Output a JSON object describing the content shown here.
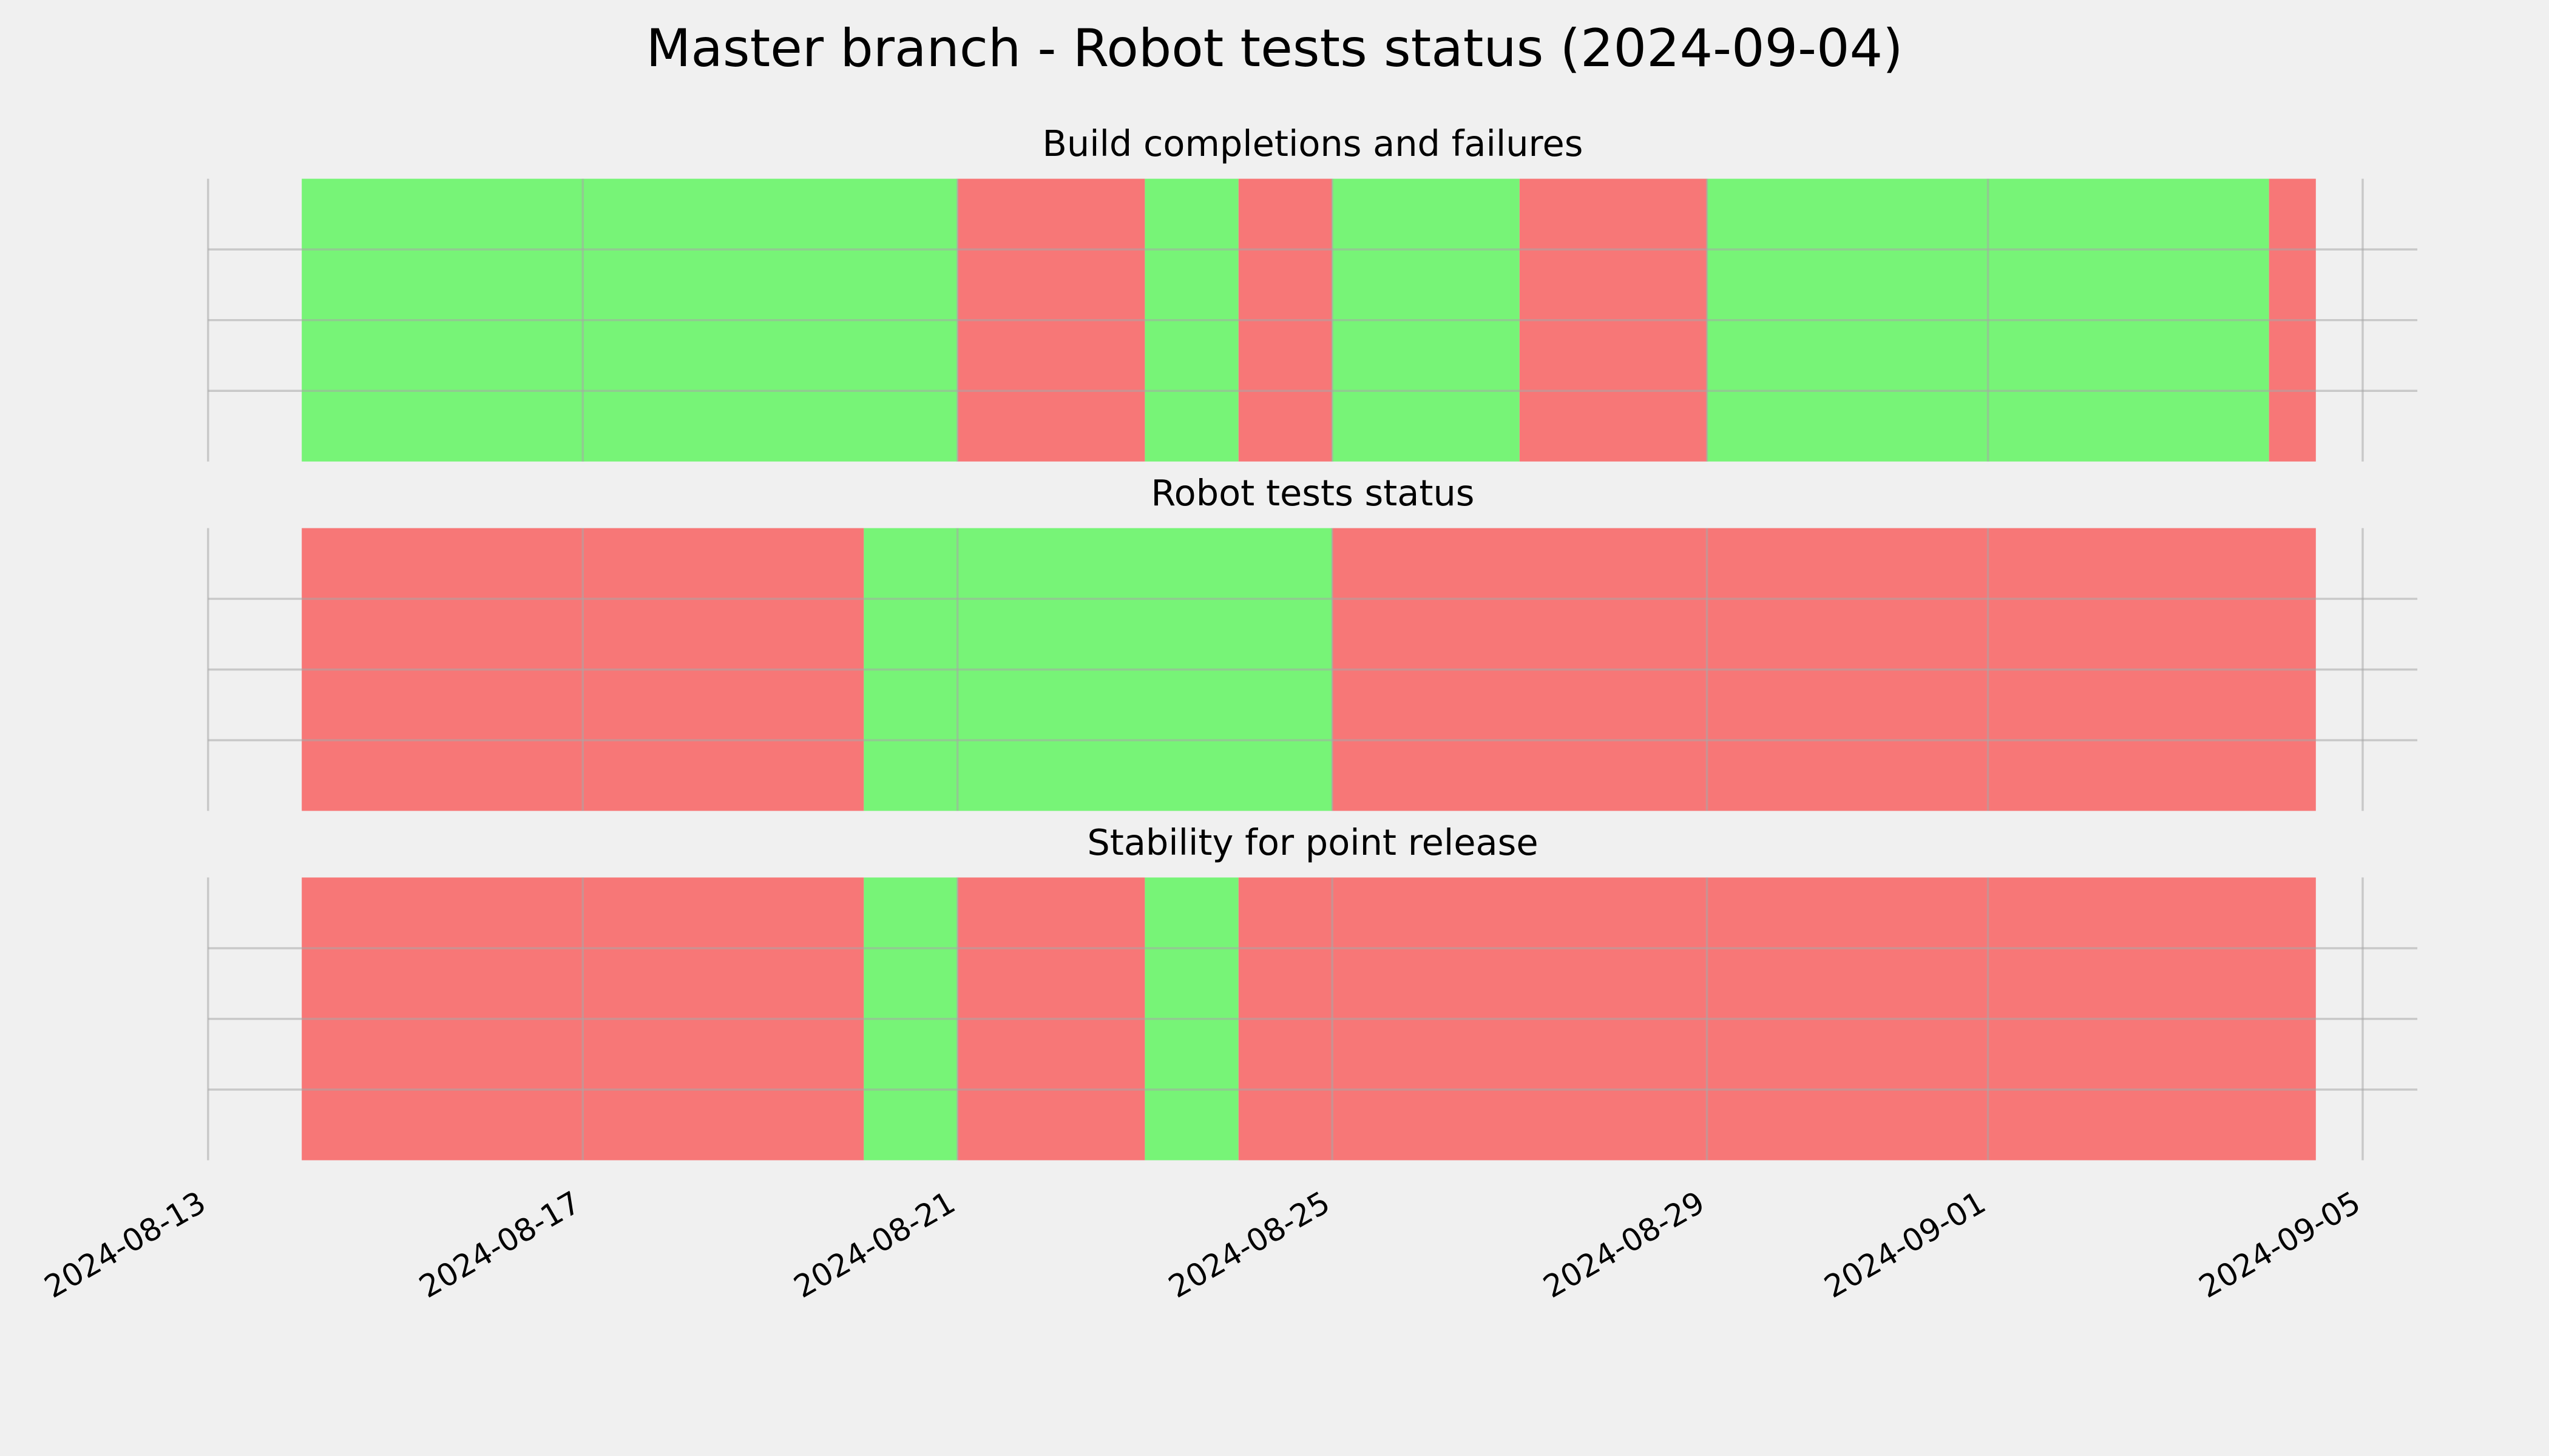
{
  "title": "Master branch - Robot tests status (2024-09-04)",
  "chart_data": [
    {
      "type": "timeline",
      "title": "Build completions and failures",
      "x": [
        "2024-08-14",
        "2024-08-21",
        "2024-08-23",
        "2024-08-24",
        "2024-08-25",
        "2024-08-27",
        "2024-08-29",
        "2024-09-04",
        "2024-09-04T12:00"
      ],
      "colors": [
        "#77f477",
        "#f77777",
        "#77f477",
        "#f77777",
        "#77f477",
        "#f77777",
        "#77f477",
        "#f77777"
      ],
      "xlim": [
        "2024-08-13",
        "2024-09-05T14:00"
      ],
      "xticks": [
        "2024-08-13",
        "2024-08-17",
        "2024-08-21",
        "2024-08-25",
        "2024-08-29",
        "2024-09-01",
        "2024-09-05"
      ],
      "ylim": [
        0,
        1
      ],
      "yticks": [
        0.25,
        0.5,
        0.75
      ],
      "grid": true
    },
    {
      "type": "timeline",
      "title": "Robot tests status",
      "x": [
        "2024-08-14",
        "2024-08-20",
        "2024-08-25",
        "2024-09-04T12:00"
      ],
      "colors": [
        "#f77777",
        "#77f477",
        "#f77777"
      ],
      "xlim": [
        "2024-08-13",
        "2024-09-05T14:00"
      ],
      "xticks": [
        "2024-08-13",
        "2024-08-17",
        "2024-08-21",
        "2024-08-25",
        "2024-08-29",
        "2024-09-01",
        "2024-09-05"
      ],
      "ylim": [
        0,
        1
      ],
      "yticks": [
        0.25,
        0.5,
        0.75
      ],
      "grid": true
    },
    {
      "type": "timeline",
      "title": "Stability for point release",
      "x": [
        "2024-08-14",
        "2024-08-20",
        "2024-08-21",
        "2024-08-23",
        "2024-08-24",
        "2024-09-04T12:00"
      ],
      "colors": [
        "#f77777",
        "#77f477",
        "#f77777",
        "#77f477",
        "#f77777"
      ],
      "xlim": [
        "2024-08-13",
        "2024-09-05T14:00"
      ],
      "xticks": [
        "2024-08-13",
        "2024-08-17",
        "2024-08-21",
        "2024-08-25",
        "2024-08-29",
        "2024-09-01",
        "2024-09-05"
      ],
      "ylim": [
        0,
        1
      ],
      "yticks": [
        0.25,
        0.5,
        0.75
      ],
      "grid": true
    }
  ]
}
